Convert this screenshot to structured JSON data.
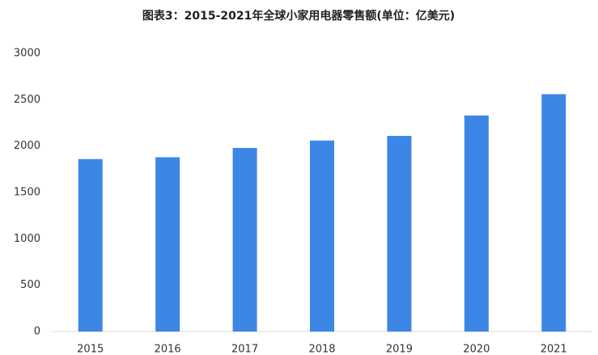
{
  "chart_data": {
    "type": "bar",
    "title": "图表3：2015-2021年全球小家用电器零售额(单位：亿美元)",
    "categories": [
      "2015",
      "2016",
      "2017",
      "2018",
      "2019",
      "2020",
      "2021"
    ],
    "values": [
      1860,
      1880,
      1980,
      2060,
      2110,
      2330,
      2560
    ],
    "color": "#3c87e6",
    "ylim": [
      0,
      3000
    ],
    "yticks": [
      0,
      500,
      1000,
      1500,
      2000,
      2500,
      3000
    ],
    "grid": false
  }
}
